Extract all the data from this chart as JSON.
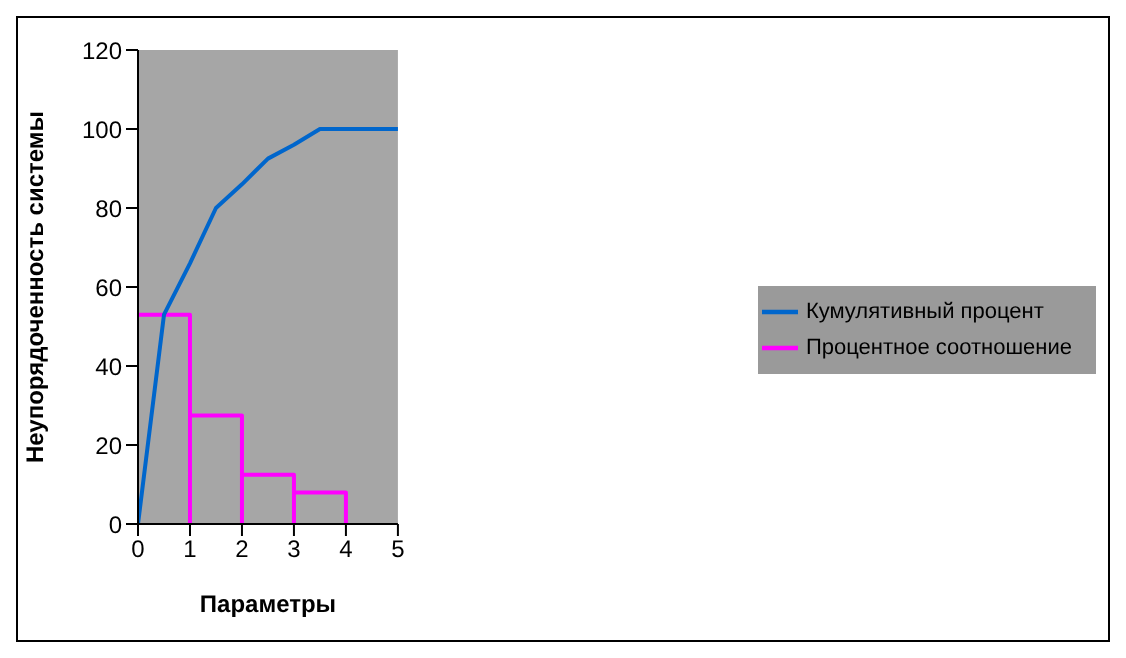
{
  "chart_data": {
    "type": "line",
    "xlabel": "Параметры",
    "ylabel": "Неупорядоченность системы",
    "xlim": [
      0,
      5
    ],
    "xticks": [
      0,
      1,
      2,
      3,
      4,
      5
    ],
    "ylim": [
      0,
      120
    ],
    "yticks": [
      0,
      20,
      40,
      60,
      80,
      100,
      120
    ],
    "grid": false,
    "legend": "right",
    "marker": "none",
    "line_style": "solid",
    "series": [
      {
        "name": "Процентное соотношение",
        "color": "#ff00ff",
        "x": [
          0,
          1,
          1,
          1,
          2,
          2,
          2,
          3,
          3,
          3,
          4,
          4
        ],
        "values": [
          53,
          53,
          0,
          27.5,
          27.5,
          0,
          12.5,
          12.5,
          0,
          8,
          8,
          0
        ]
      },
      {
        "name": "Кумулятивный процент",
        "color": "#0066cc",
        "x": [
          0,
          0.5,
          1,
          1.5,
          2,
          2.5,
          3,
          3.5,
          4,
          5
        ],
        "values": [
          0,
          53,
          66,
          80,
          86,
          92.5,
          96,
          100,
          100,
          100
        ]
      }
    ]
  }
}
